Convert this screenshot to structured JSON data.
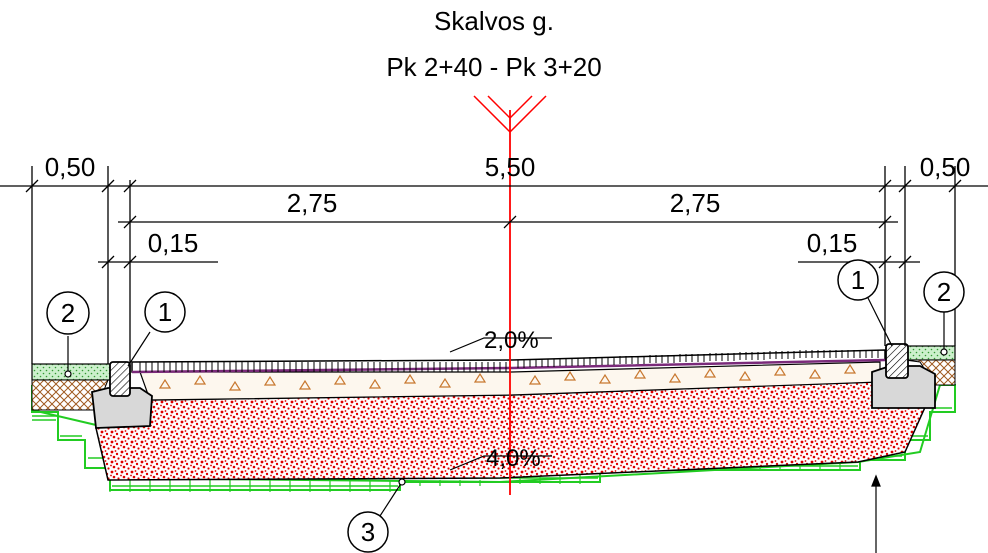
{
  "title": {
    "street": "Skalvos g.",
    "chainage": "Pk 2+40 - Pk 3+20"
  },
  "dimensions": {
    "total": "5,50",
    "half_left": "2,75",
    "half_right": "2,75",
    "verge_left": "0,50",
    "verge_right": "0,50",
    "curb_left": "0,15",
    "curb_right": "0,15"
  },
  "slopes": {
    "surface": "2,0%",
    "subgrade": "4,0%"
  },
  "callouts": {
    "curb_left": "1",
    "curb_right": "1",
    "topsoil_left": "2",
    "topsoil_right": "2",
    "subbase": "3"
  },
  "colors": {
    "axis": "#ff0000",
    "subbase_fill": "#ffffff",
    "subbase_dots": "#e00000",
    "gravel_triangles": "#c87830",
    "ground_hatch": "#22cc22",
    "topsoil_fill": "#ccf0cc",
    "fill_hatch": "#a05a20",
    "curb_fill": "#d8d8d8",
    "asphalt_line": "#7a2a7a"
  }
}
